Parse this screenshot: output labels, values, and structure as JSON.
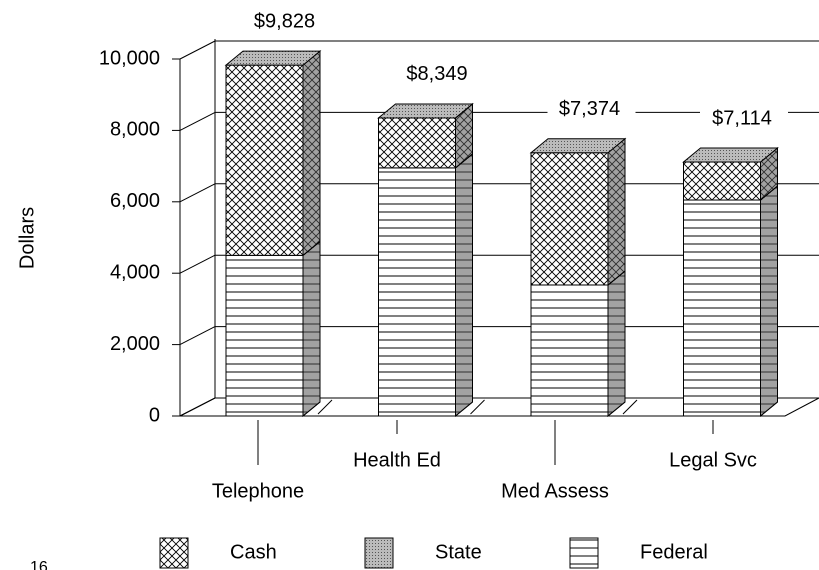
{
  "chart_data": {
    "type": "bar3d-stacked",
    "y_axis_label": "Dollars",
    "categories": [
      "Telephone",
      "Health Ed",
      "Med Assess",
      "Legal Svc"
    ],
    "series": [
      {
        "name": "Cash",
        "color": "#ffffff",
        "pattern": "crosshatch",
        "values": [
          5328,
          1399,
          3704,
          1064
        ]
      },
      {
        "name": "State",
        "color": "#999999",
        "pattern": "dots",
        "values": [
          0,
          0,
          0,
          0
        ]
      },
      {
        "name": "Federal",
        "color": "#ffffff",
        "pattern": "hlines",
        "values": [
          4500,
          6950,
          3670,
          6050
        ]
      }
    ],
    "totals": [
      9828,
      8349,
      7374,
      7114
    ],
    "total_labels": [
      "$9,828",
      "$8,349",
      "$7,374",
      "$7,114"
    ],
    "ylim": [
      0,
      10000
    ],
    "yticks": [
      0,
      {
        "value": 2000,
        "label": "2,000"
      },
      {
        "value": 4000,
        "label": "4,000"
      },
      {
        "value": 6000,
        "label": "6,000"
      },
      {
        "value": 8000,
        "label": "8,000"
      },
      {
        "value": 10000,
        "label": "10,000"
      }
    ],
    "grid": true,
    "legend": "bottom"
  },
  "page_number": "16"
}
